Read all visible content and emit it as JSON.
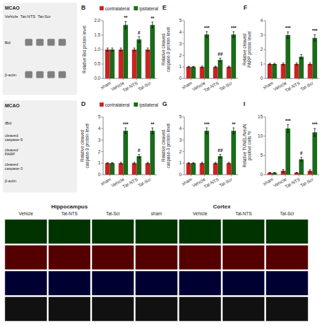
{
  "chart_data": [
    {
      "type": "bar",
      "title": "B",
      "ylabel": "Relative Bid protein level",
      "categories": [
        "sham",
        "Vehicle",
        "Tat-NTS",
        "Tat-Scr"
      ],
      "series": [
        {
          "name": "contralateral",
          "color": "#cc2222",
          "values": [
            1.0,
            1.0,
            1.0,
            1.0
          ],
          "errors": [
            0.05,
            0.05,
            0.05,
            0.05
          ]
        },
        {
          "name": "ipsilateral",
          "color": "#1a6b1a",
          "values": [
            1.0,
            1.85,
            1.35,
            1.85
          ],
          "errors": [
            0.05,
            0.12,
            0.1,
            0.1
          ],
          "annotations": [
            null,
            "**",
            "#",
            "**"
          ]
        }
      ],
      "ylim": [
        0,
        2.0
      ],
      "yticks": [
        {
          "value": 0,
          "label": "0.0"
        },
        0.5,
        {
          "value": 1.0,
          "label": "1.0"
        },
        1.5,
        {
          "value": 2.0,
          "label": "2.0"
        }
      ],
      "legend": "upper right"
    },
    {
      "type": "bar",
      "title": "E",
      "ylabel": "Relative cleaved\ncaspase-9 protein level",
      "categories": [
        "sham",
        "Vehicle",
        "Tat-NTS",
        "Tat-Scr"
      ],
      "series": [
        {
          "name": "contralateral",
          "color": "#cc2222",
          "values": [
            1.0,
            1.0,
            1.0,
            1.0
          ],
          "errors": [
            0.05,
            0.07,
            0.07,
            0.07
          ]
        },
        {
          "name": "ipsilateral",
          "color": "#1a6b1a",
          "values": [
            1.0,
            3.8,
            1.6,
            3.8
          ],
          "errors": [
            0.05,
            0.25,
            0.15,
            0.25
          ],
          "annotations": [
            null,
            "***",
            "##",
            "***"
          ]
        }
      ],
      "ylim": [
        0,
        5
      ],
      "yticks": [
        0,
        1,
        2,
        3,
        4,
        5
      ]
    },
    {
      "type": "bar",
      "title": "F",
      "ylabel": "Relative cleaved\nPARP protein level",
      "categories": [
        "sham",
        "Vehicle",
        "Tat-NTS",
        "Tat-Scr"
      ],
      "series": [
        {
          "name": "contralateral",
          "color": "#cc2222",
          "values": [
            1.0,
            1.0,
            1.0,
            1.0
          ],
          "errors": [
            0.05,
            0.07,
            0.07,
            0.07
          ]
        },
        {
          "name": "ipsilateral",
          "color": "#1a6b1a",
          "values": [
            1.0,
            3.0,
            1.5,
            2.8
          ],
          "errors": [
            0.05,
            0.22,
            0.15,
            0.22
          ],
          "annotations": [
            null,
            "***",
            null,
            "***"
          ]
        }
      ],
      "ylim": [
        0,
        4
      ],
      "yticks": [
        0,
        1,
        2,
        3,
        4
      ]
    },
    {
      "type": "bar",
      "title": "D",
      "ylabel": "Relative cleaved\ncaspase-9 protein level",
      "categories": [
        "sham",
        "Vehicle",
        "Tat-NTS",
        "Tat-Scr"
      ],
      "series": [
        {
          "name": "contralateral",
          "color": "#cc2222",
          "values": [
            1.0,
            1.0,
            1.0,
            1.0
          ],
          "errors": [
            0.05,
            0.07,
            0.07,
            0.07
          ]
        },
        {
          "name": "ipsilateral",
          "color": "#1a6b1a",
          "values": [
            1.0,
            3.8,
            1.6,
            3.8
          ],
          "errors": [
            0.05,
            0.25,
            0.15,
            0.25
          ],
          "annotations": [
            null,
            "***",
            "#",
            "**"
          ]
        }
      ],
      "ylim": [
        0,
        5
      ],
      "yticks": [
        0,
        1,
        2,
        3,
        4,
        5
      ],
      "legend": "upper right"
    },
    {
      "type": "bar",
      "title": "G",
      "ylabel": "Relative cleaved\ncaspase-3 protein level",
      "categories": [
        "sham",
        "Vehicle",
        "Tat-NTS",
        "Tat-Scr"
      ],
      "series": [
        {
          "name": "contralateral",
          "color": "#cc2222",
          "values": [
            1.0,
            1.0,
            1.0,
            1.0
          ],
          "errors": [
            0.05,
            0.07,
            0.07,
            0.07
          ]
        },
        {
          "name": "ipsilateral",
          "color": "#1a6b1a",
          "values": [
            1.0,
            3.8,
            1.6,
            3.8
          ],
          "errors": [
            0.05,
            0.25,
            0.15,
            0.25
          ],
          "annotations": [
            null,
            "***",
            "##",
            "**"
          ]
        }
      ],
      "ylim": [
        0,
        5
      ],
      "yticks": [
        0,
        1,
        2,
        3,
        4,
        5
      ]
    },
    {
      "type": "bar",
      "title": "I",
      "ylabel": "Relative TUNEL/NeuN\npositive cells %",
      "categories": [
        "sham",
        "Vehicle",
        "Tat-NTS",
        "Tat-Scr"
      ],
      "series": [
        {
          "name": "contralateral",
          "color": "#cc2222",
          "values": [
            0.5,
            1.0,
            0.5,
            1.0
          ],
          "errors": [
            0.1,
            0.3,
            0.1,
            0.3
          ]
        },
        {
          "name": "ipsilateral",
          "color": "#1a6b1a",
          "values": [
            0.5,
            12.0,
            4.0,
            11.0
          ],
          "errors": [
            0.1,
            1.0,
            0.5,
            1.0
          ],
          "annotations": [
            null,
            "***",
            "#",
            "***"
          ]
        }
      ],
      "ylim": [
        0,
        15
      ],
      "yticks": [
        0,
        5,
        10,
        15
      ]
    },
    {
      "type": "blot",
      "title": "MCAO",
      "subtitle": "Vehicle  Tat-NTS  Tat-Scr",
      "categories": [
        "Bid",
        "β-actin"
      ]
    },
    {
      "type": "blot",
      "title": "MCAO",
      "categories": [
        "tBid",
        "cleaved\ncaspase-9",
        "cleaved\nPARP",
        "cleaved\ncaspase-3",
        "β-actin"
      ]
    },
    {
      "type": "image_grid",
      "series": [
        {
          "name": "Hippocampus",
          "categories": [
            "Vehicle",
            "Tat-NTS",
            "Tat-Scr"
          ]
        },
        {
          "name": "Cortex",
          "categories": [
            "sham",
            "Vehicle",
            "Tat-NTS",
            "Tat-Scr"
          ]
        }
      ]
    }
  ]
}
